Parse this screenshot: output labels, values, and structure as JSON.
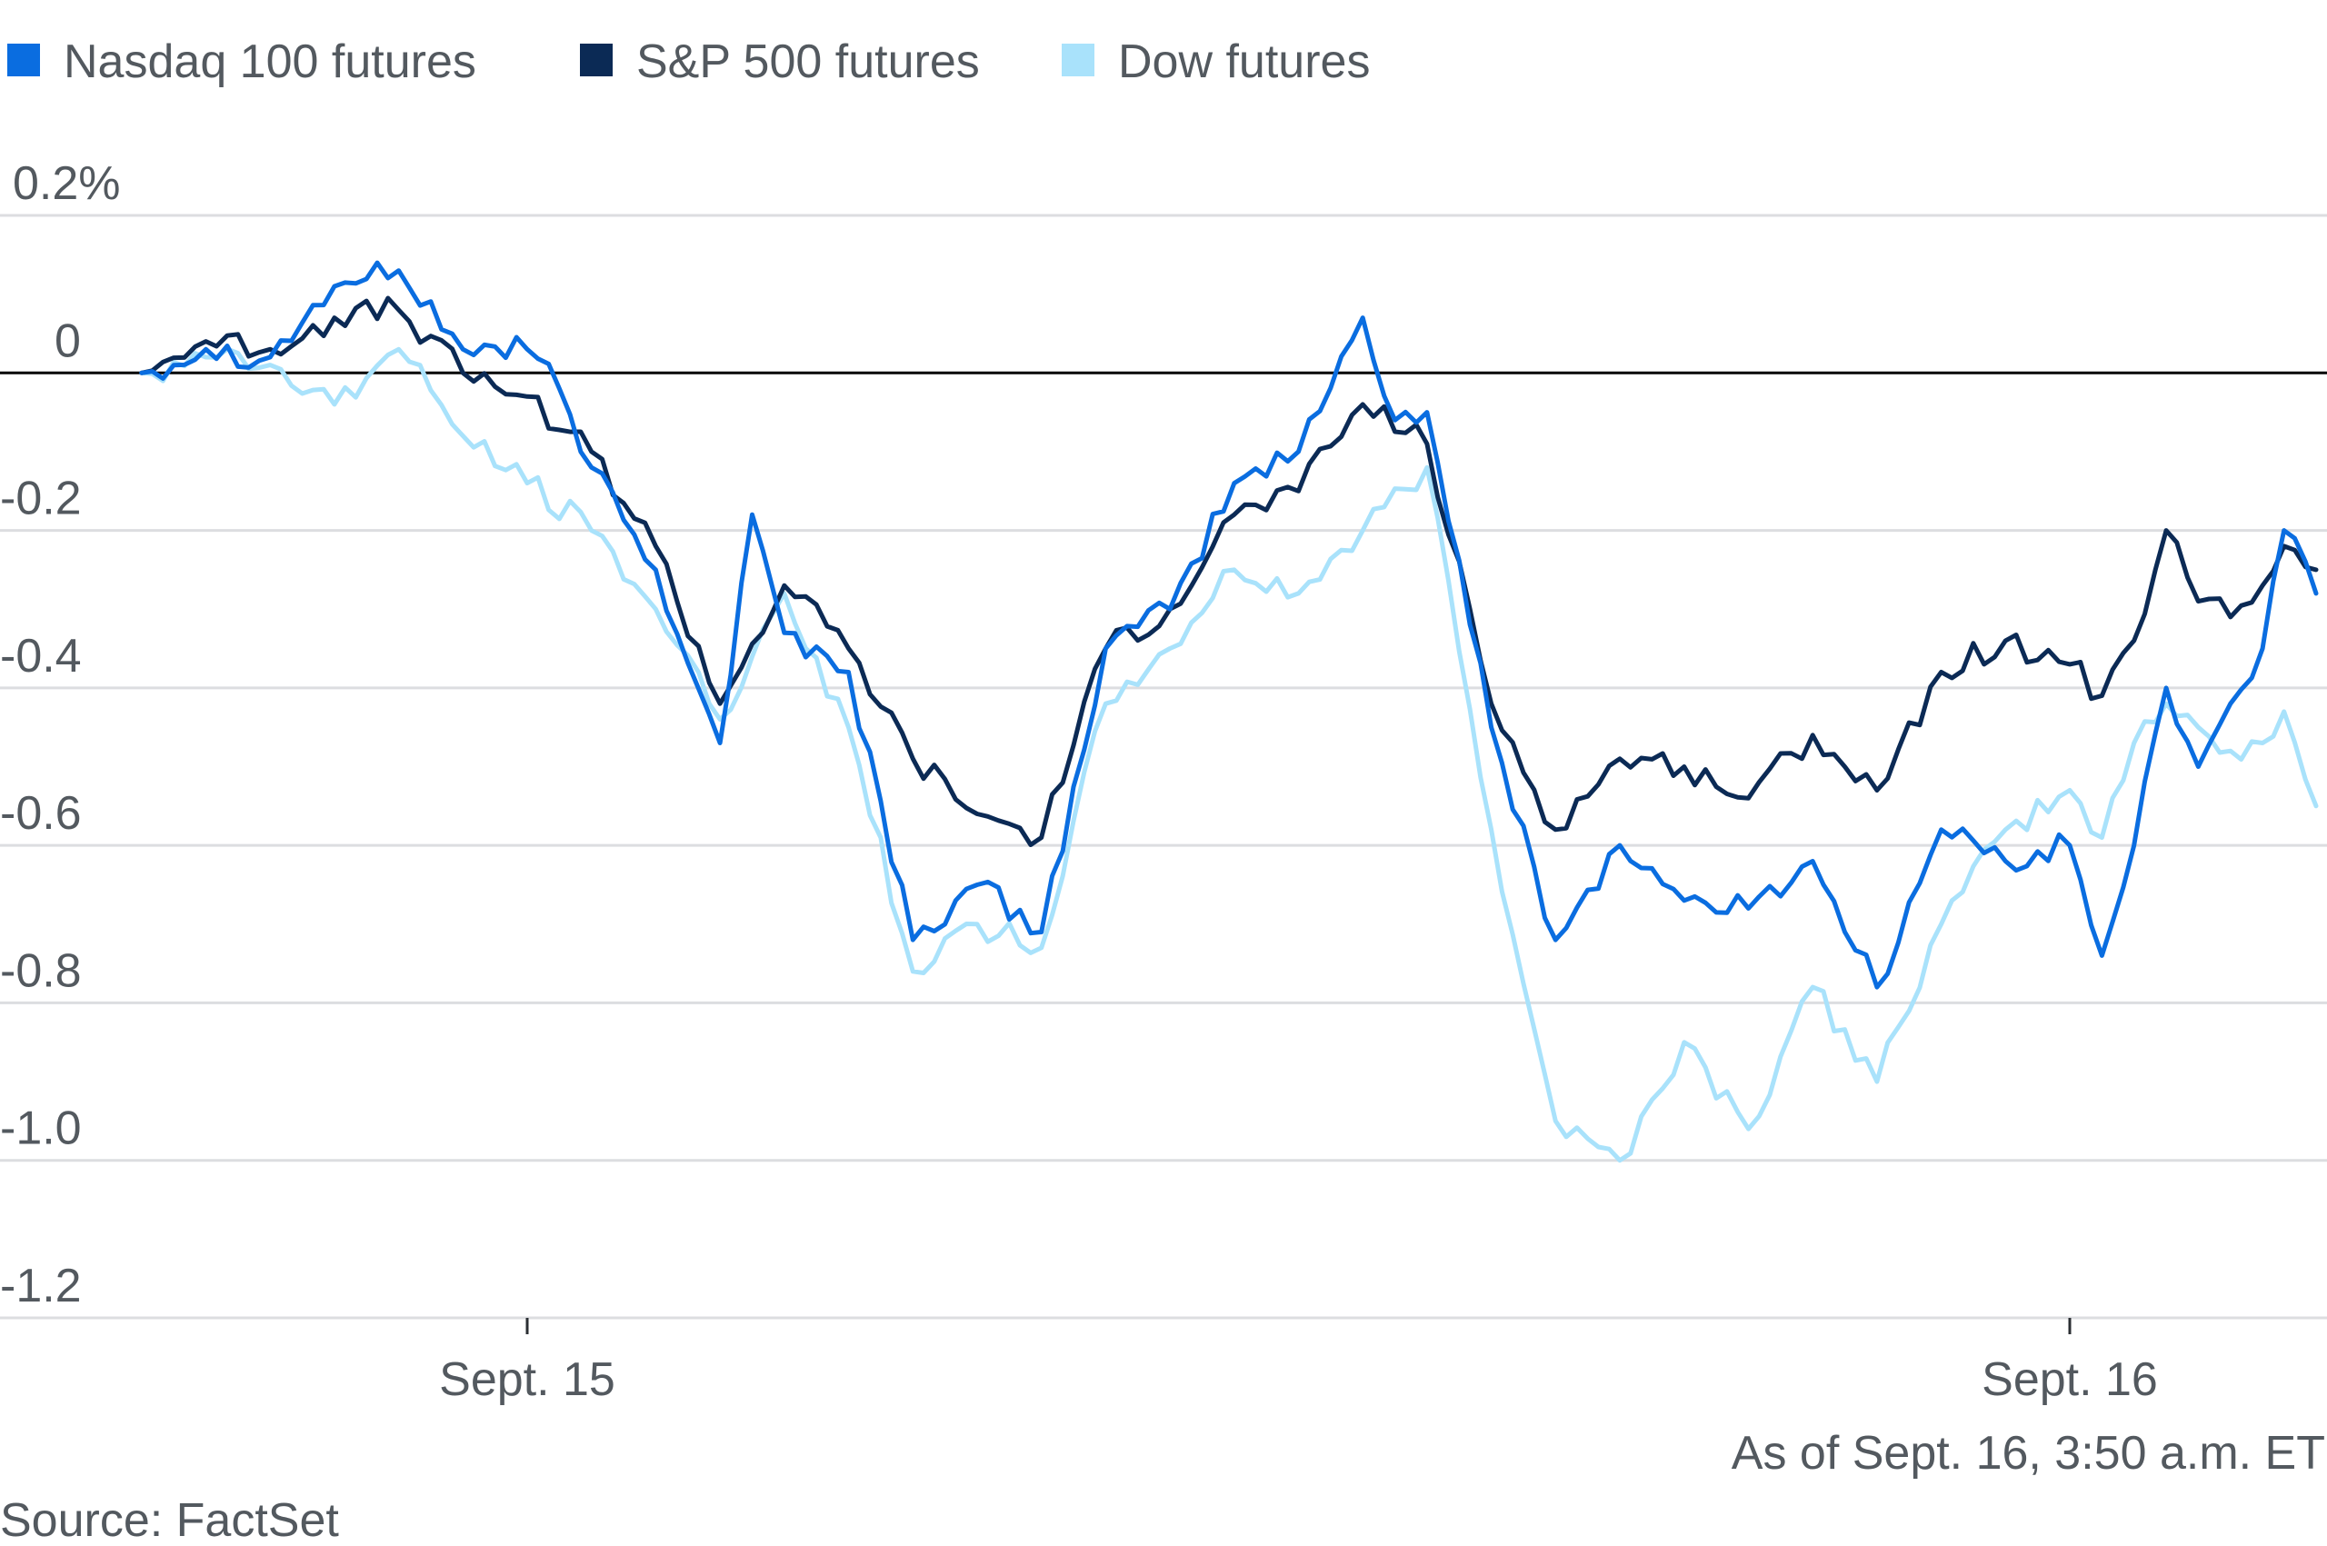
{
  "chart_data": {
    "type": "line",
    "title": "",
    "xlabel": "",
    "ylabel": "",
    "y_unit_top_label": "0.2%",
    "ylim": [
      -1.2,
      0.2
    ],
    "yticks": [
      0.2,
      0,
      -0.2,
      -0.4,
      -0.6,
      -0.8,
      -1.0,
      -1.2
    ],
    "ytick_labels": [
      "0.2%",
      "0",
      "-0.2",
      "-0.4",
      "-0.6",
      "-0.8",
      "-1.0",
      "-1.2"
    ],
    "grid": true,
    "zero_line": true,
    "legend_position": "top-left",
    "x_axis": {
      "type": "time",
      "range": [
        "Sept. 14 18:00",
        "Sept. 16 03:50"
      ],
      "ticks": [
        {
          "x": "Sept. 15 00:00",
          "label": "Sept. 15"
        },
        {
          "x": "Sept. 16 00:00",
          "label": "Sept. 16"
        }
      ]
    },
    "series": [
      {
        "name": "Nasdaq 100 futures",
        "color": "#0a6de0",
        "points": [
          {
            "t": "Sept. 14 18:00",
            "v": 0.0
          },
          {
            "t": "Sept. 14 19:00",
            "v": 0.03
          },
          {
            "t": "Sept. 14 20:00",
            "v": 0.02
          },
          {
            "t": "Sept. 14 21:00",
            "v": 0.11
          },
          {
            "t": "Sept. 14 22:00",
            "v": 0.13
          },
          {
            "t": "Sept. 14 23:00",
            "v": 0.03
          },
          {
            "t": "Sept. 15 00:00",
            "v": 0.03
          },
          {
            "t": "Sept. 15 00:30",
            "v": -0.02
          },
          {
            "t": "Sept. 15 01:00",
            "v": -0.12
          },
          {
            "t": "Sept. 15 02:00",
            "v": -0.25
          },
          {
            "t": "Sept. 15 03:00",
            "v": -0.47
          },
          {
            "t": "Sept. 15 03:30",
            "v": -0.18
          },
          {
            "t": "Sept. 15 04:00",
            "v": -0.33
          },
          {
            "t": "Sept. 15 05:00",
            "v": -0.38
          },
          {
            "t": "Sept. 15 06:00",
            "v": -0.72
          },
          {
            "t": "Sept. 15 07:00",
            "v": -0.65
          },
          {
            "t": "Sept. 15 08:00",
            "v": -0.71
          },
          {
            "t": "Sept. 15 09:00",
            "v": -0.35
          },
          {
            "t": "Sept. 15 10:00",
            "v": -0.3
          },
          {
            "t": "Sept. 15 11:00",
            "v": -0.14
          },
          {
            "t": "Sept. 15 12:00",
            "v": -0.1
          },
          {
            "t": "Sept. 15 13:00",
            "v": 0.07
          },
          {
            "t": "Sept. 15 13:30",
            "v": -0.06
          },
          {
            "t": "Sept. 15 14:00",
            "v": -0.05
          },
          {
            "t": "Sept. 15 15:00",
            "v": -0.45
          },
          {
            "t": "Sept. 15 16:00",
            "v": -0.72
          },
          {
            "t": "Sept. 15 17:00",
            "v": -0.6
          },
          {
            "t": "Sept. 15 18:00",
            "v": -0.67
          },
          {
            "t": "Sept. 15 19:00",
            "v": -0.68
          },
          {
            "t": "Sept. 15 20:00",
            "v": -0.62
          },
          {
            "t": "Sept. 15 21:00",
            "v": -0.78
          },
          {
            "t": "Sept. 15 22:00",
            "v": -0.58
          },
          {
            "t": "Sept. 15 23:00",
            "v": -0.62
          },
          {
            "t": "Sept. 16 00:00",
            "v": -0.6
          },
          {
            "t": "Sept. 16 00:30",
            "v": -0.74
          },
          {
            "t": "Sept. 16 01:00",
            "v": -0.6
          },
          {
            "t": "Sept. 16 01:30",
            "v": -0.4
          },
          {
            "t": "Sept. 16 02:00",
            "v": -0.5
          },
          {
            "t": "Sept. 16 02:30",
            "v": -0.42
          },
          {
            "t": "Sept. 16 03:00",
            "v": -0.35
          },
          {
            "t": "Sept. 16 03:20",
            "v": -0.2
          },
          {
            "t": "Sept. 16 03:50",
            "v": -0.28
          }
        ]
      },
      {
        "name": "S&P 500 futures",
        "color": "#0b2a55",
        "points": [
          {
            "t": "Sept. 14 18:00",
            "v": 0.0
          },
          {
            "t": "Sept. 14 19:00",
            "v": 0.04
          },
          {
            "t": "Sept. 14 20:00",
            "v": 0.03
          },
          {
            "t": "Sept. 14 21:00",
            "v": 0.07
          },
          {
            "t": "Sept. 14 22:00",
            "v": 0.08
          },
          {
            "t": "Sept. 14 23:00",
            "v": 0.0
          },
          {
            "t": "Sept. 15 00:00",
            "v": -0.03
          },
          {
            "t": "Sept. 15 01:00",
            "v": -0.1
          },
          {
            "t": "Sept. 15 02:00",
            "v": -0.22
          },
          {
            "t": "Sept. 15 03:00",
            "v": -0.42
          },
          {
            "t": "Sept. 15 04:00",
            "v": -0.27
          },
          {
            "t": "Sept. 15 05:00",
            "v": -0.35
          },
          {
            "t": "Sept. 15 06:00",
            "v": -0.49
          },
          {
            "t": "Sept. 15 07:00",
            "v": -0.56
          },
          {
            "t": "Sept. 15 08:00",
            "v": -0.59
          },
          {
            "t": "Sept. 15 09:00",
            "v": -0.35
          },
          {
            "t": "Sept. 15 10:00",
            "v": -0.3
          },
          {
            "t": "Sept. 15 11:00",
            "v": -0.18
          },
          {
            "t": "Sept. 15 12:00",
            "v": -0.15
          },
          {
            "t": "Sept. 15 13:00",
            "v": -0.04
          },
          {
            "t": "Sept. 15 14:00",
            "v": -0.09
          },
          {
            "t": "Sept. 15 15:00",
            "v": -0.42
          },
          {
            "t": "Sept. 15 16:00",
            "v": -0.58
          },
          {
            "t": "Sept. 15 17:00",
            "v": -0.49
          },
          {
            "t": "Sept. 15 18:00",
            "v": -0.5
          },
          {
            "t": "Sept. 15 19:00",
            "v": -0.54
          },
          {
            "t": "Sept. 15 20:00",
            "v": -0.46
          },
          {
            "t": "Sept. 15 21:00",
            "v": -0.53
          },
          {
            "t": "Sept. 15 22:00",
            "v": -0.38
          },
          {
            "t": "Sept. 15 23:00",
            "v": -0.34
          },
          {
            "t": "Sept. 16 00:00",
            "v": -0.37
          },
          {
            "t": "Sept. 16 00:30",
            "v": -0.41
          },
          {
            "t": "Sept. 16 01:00",
            "v": -0.34
          },
          {
            "t": "Sept. 16 01:30",
            "v": -0.2
          },
          {
            "t": "Sept. 16 02:00",
            "v": -0.29
          },
          {
            "t": "Sept. 16 02:30",
            "v": -0.31
          },
          {
            "t": "Sept. 16 03:00",
            "v": -0.27
          },
          {
            "t": "Sept. 16 03:20",
            "v": -0.22
          },
          {
            "t": "Sept. 16 03:50",
            "v": -0.25
          }
        ]
      },
      {
        "name": "Dow futures",
        "color": "#a9e2fb",
        "points": [
          {
            "t": "Sept. 14 18:00",
            "v": 0.0
          },
          {
            "t": "Sept. 14 19:00",
            "v": 0.02
          },
          {
            "t": "Sept. 14 20:00",
            "v": 0.01
          },
          {
            "t": "Sept. 14 21:00",
            "v": -0.04
          },
          {
            "t": "Sept. 14 22:00",
            "v": 0.03
          },
          {
            "t": "Sept. 14 23:00",
            "v": -0.08
          },
          {
            "t": "Sept. 15 00:00",
            "v": -0.14
          },
          {
            "t": "Sept. 15 01:00",
            "v": -0.2
          },
          {
            "t": "Sept. 15 02:00",
            "v": -0.3
          },
          {
            "t": "Sept. 15 03:00",
            "v": -0.44
          },
          {
            "t": "Sept. 15 04:00",
            "v": -0.28
          },
          {
            "t": "Sept. 15 05:00",
            "v": -0.45
          },
          {
            "t": "Sept. 15 06:00",
            "v": -0.76
          },
          {
            "t": "Sept. 15 07:00",
            "v": -0.7
          },
          {
            "t": "Sept. 15 08:00",
            "v": -0.73
          },
          {
            "t": "Sept. 15 09:00",
            "v": -0.42
          },
          {
            "t": "Sept. 15 10:00",
            "v": -0.35
          },
          {
            "t": "Sept. 15 11:00",
            "v": -0.25
          },
          {
            "t": "Sept. 15 12:00",
            "v": -0.28
          },
          {
            "t": "Sept. 15 13:00",
            "v": -0.2
          },
          {
            "t": "Sept. 15 14:00",
            "v": -0.12
          },
          {
            "t": "Sept. 15 15:00",
            "v": -0.58
          },
          {
            "t": "Sept. 15 16:00",
            "v": -0.95
          },
          {
            "t": "Sept. 15 17:00",
            "v": -1.0
          },
          {
            "t": "Sept. 15 18:00",
            "v": -0.85
          },
          {
            "t": "Sept. 15 19:00",
            "v": -0.96
          },
          {
            "t": "Sept. 15 20:00",
            "v": -0.78
          },
          {
            "t": "Sept. 15 21:00",
            "v": -0.9
          },
          {
            "t": "Sept. 15 22:00",
            "v": -0.7
          },
          {
            "t": "Sept. 15 23:00",
            "v": -0.58
          },
          {
            "t": "Sept. 16 00:00",
            "v": -0.53
          },
          {
            "t": "Sept. 16 00:30",
            "v": -0.59
          },
          {
            "t": "Sept. 16 01:00",
            "v": -0.47
          },
          {
            "t": "Sept. 16 01:30",
            "v": -0.42
          },
          {
            "t": "Sept. 16 02:00",
            "v": -0.45
          },
          {
            "t": "Sept. 16 02:30",
            "v": -0.48
          },
          {
            "t": "Sept. 16 03:00",
            "v": -0.47
          },
          {
            "t": "Sept. 16 03:20",
            "v": -0.43
          },
          {
            "t": "Sept. 16 03:50",
            "v": -0.55
          }
        ]
      }
    ],
    "annotations": [
      "As of Sept. 16, 3:50 a.m. ET"
    ],
    "source": "Source: FactSet"
  }
}
